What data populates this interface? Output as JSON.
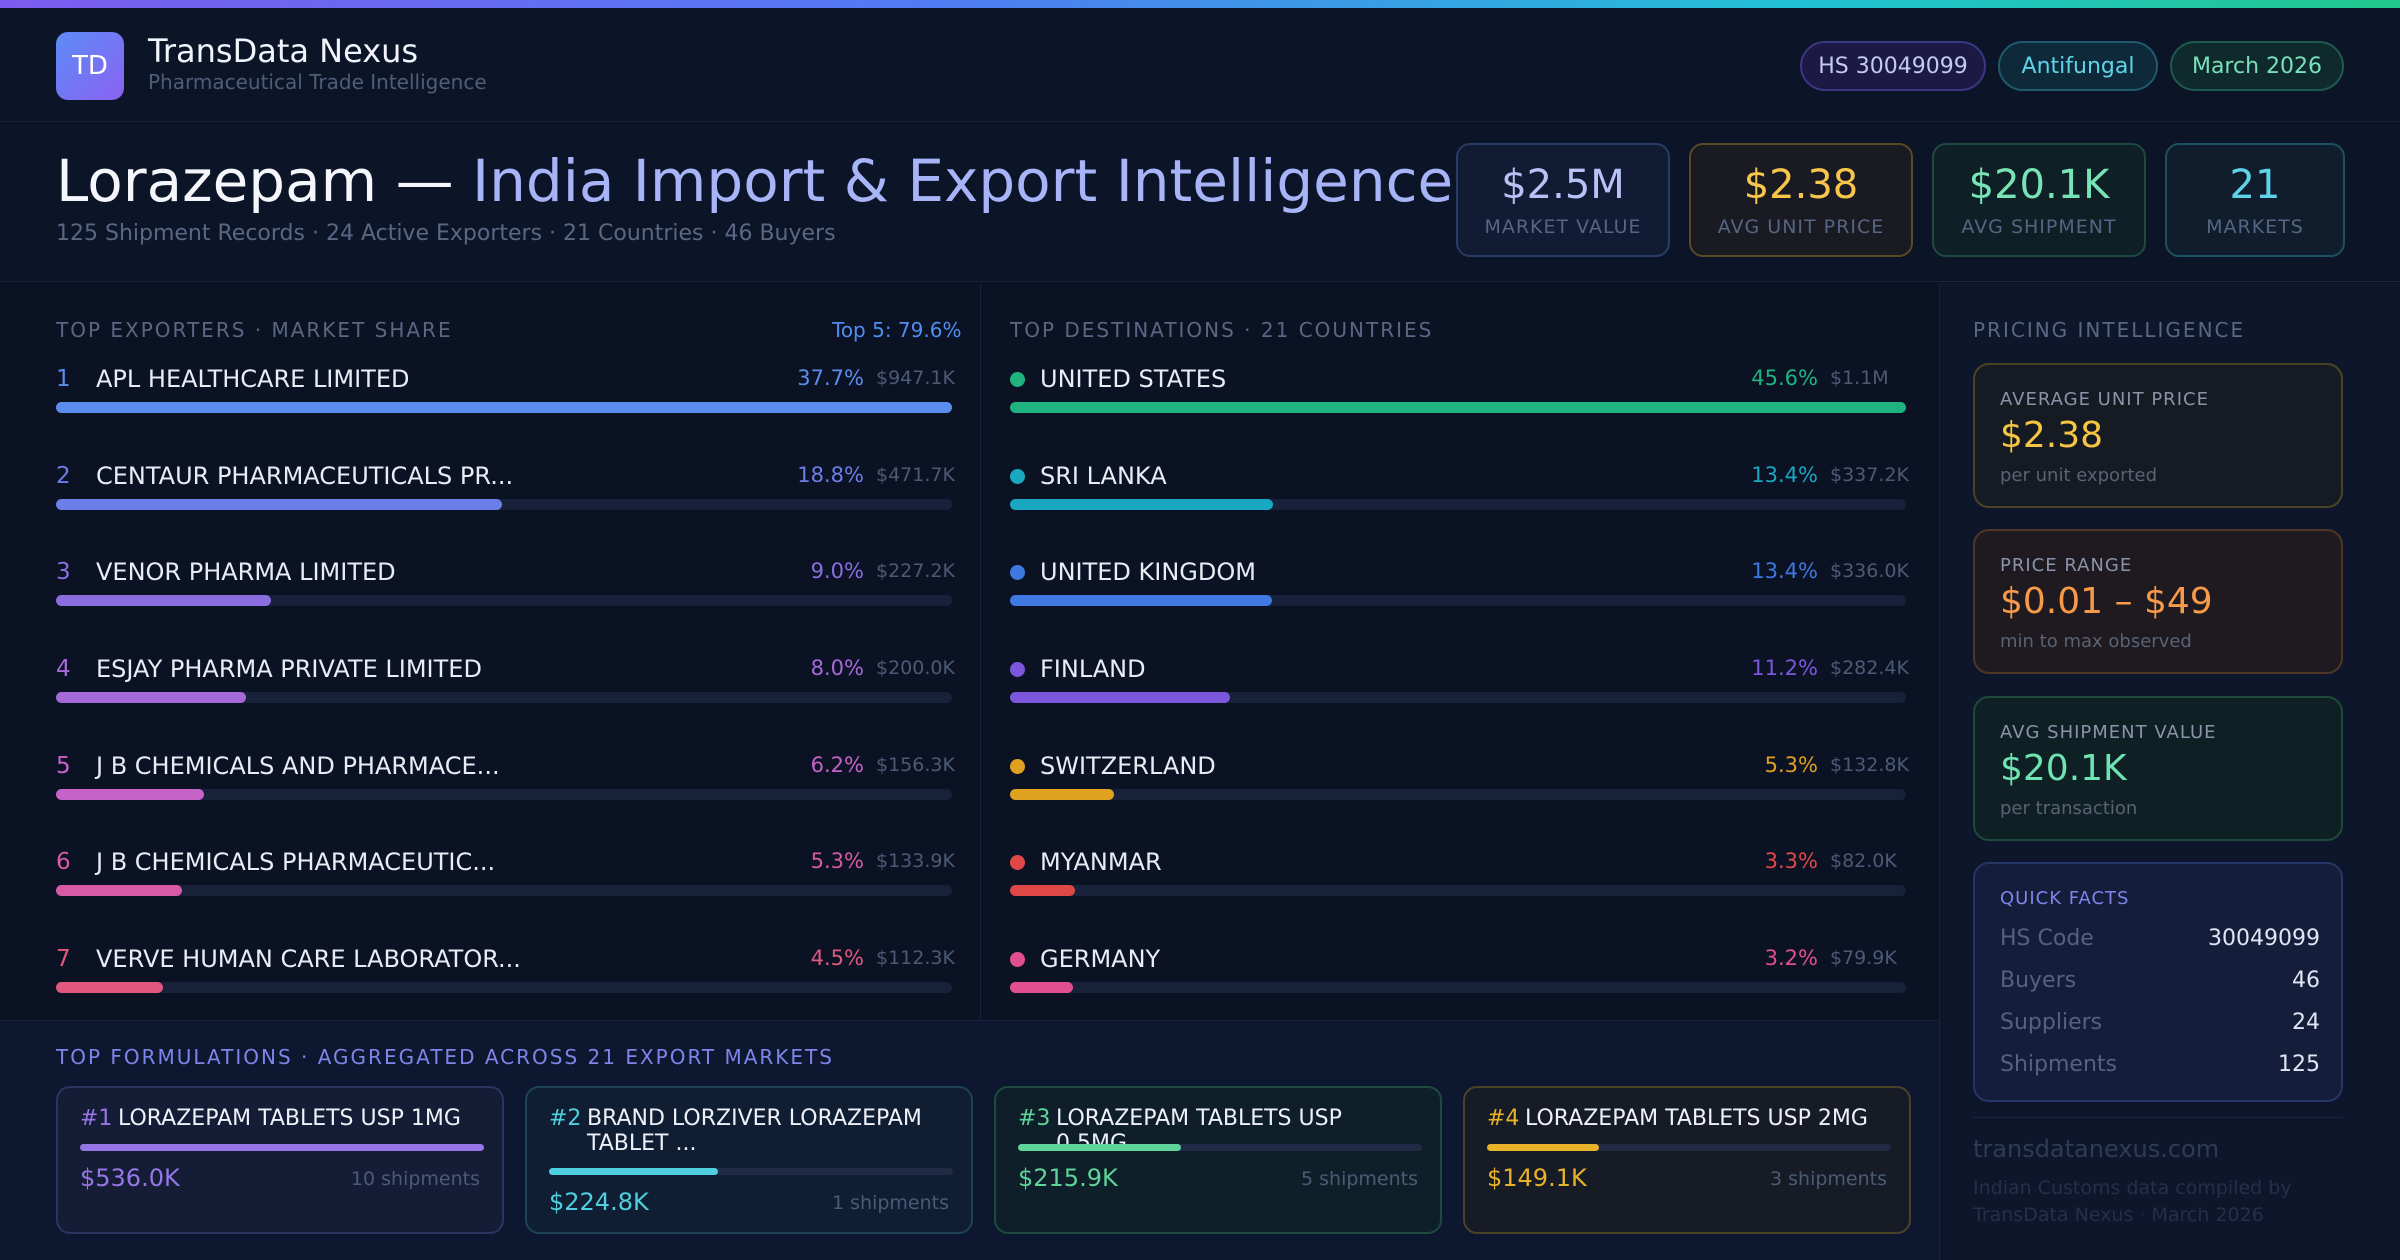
{
  "brand": {
    "logo_text": "TD",
    "name": "TransData Nexus",
    "tagline": "Pharmaceutical Trade Intelligence"
  },
  "pills": {
    "hs": "HS 30049099",
    "category": "Antifungal",
    "date": "March 2026"
  },
  "hero": {
    "title_main": "Lorazepam — ",
    "title_accent": "India Import & Export Intelligence",
    "subtitle": "125 Shipment Records · 24 Active Exporters · 21 Countries · 46 Buyers"
  },
  "kpis": [
    {
      "value": "$2.5M",
      "label": "MARKET VALUE"
    },
    {
      "value": "$2.38",
      "label": "AVG UNIT PRICE"
    },
    {
      "value": "$20.1K",
      "label": "AVG SHIPMENT"
    },
    {
      "value": "21",
      "label": "MARKETS"
    }
  ],
  "exporters": {
    "title": "TOP EXPORTERS · MARKET SHARE",
    "top5": "Top 5: 79.6%",
    "items": [
      {
        "rank": "1",
        "name": "APL HEALTHCARE LIMITED",
        "pct": "37.7%",
        "amount": "$947.1K",
        "share": 100,
        "color": "#5b8def"
      },
      {
        "rank": "2",
        "name": "CENTAUR PHARMACEUTICALS PR...",
        "pct": "18.8%",
        "amount": "$471.7K",
        "share": 49.8,
        "color": "#6c7ee8"
      },
      {
        "rank": "3",
        "name": "VENOR PHARMA LIMITED",
        "pct": "9.0%",
        "amount": "$227.2K",
        "share": 24,
        "color": "#8a6ee0"
      },
      {
        "rank": "4",
        "name": "ESJAY PHARMA PRIVATE LIMITED",
        "pct": "8.0%",
        "amount": "$200.0K",
        "share": 21.2,
        "color": "#a56ad8"
      },
      {
        "rank": "5",
        "name": "J B CHEMICALS AND PHARMACE...",
        "pct": "6.2%",
        "amount": "$156.3K",
        "share": 16.5,
        "color": "#c563c9"
      },
      {
        "rank": "6",
        "name": "J B CHEMICALS PHARMACEUTIC...",
        "pct": "5.3%",
        "amount": "$133.9K",
        "share": 14.1,
        "color": "#d85aa6"
      },
      {
        "rank": "7",
        "name": "VERVE HUMAN CARE LABORATOR...",
        "pct": "4.5%",
        "amount": "$112.3K",
        "share": 11.9,
        "color": "#e0587e"
      }
    ]
  },
  "destinations": {
    "title": "TOP DESTINATIONS · 21 COUNTRIES",
    "items": [
      {
        "name": "UNITED STATES",
        "pct": "45.6%",
        "amount": "$1.1M",
        "share": 100,
        "color": "#1fb47f"
      },
      {
        "name": "SRI LANKA",
        "pct": "13.4%",
        "amount": "$337.2K",
        "share": 29.4,
        "color": "#1aa7c2"
      },
      {
        "name": "UNITED KINGDOM",
        "pct": "13.4%",
        "amount": "$336.0K",
        "share": 29.2,
        "color": "#3f78e0"
      },
      {
        "name": "FINLAND",
        "pct": "11.2%",
        "amount": "$282.4K",
        "share": 24.6,
        "color": "#7c57dc"
      },
      {
        "name": "SWITZERLAND",
        "pct": "5.3%",
        "amount": "$132.8K",
        "share": 11.6,
        "color": "#e0a020"
      },
      {
        "name": "MYANMAR",
        "pct": "3.3%",
        "amount": "$82.0K",
        "share": 7.2,
        "color": "#e04848"
      },
      {
        "name": "GERMANY",
        "pct": "3.2%",
        "amount": "$79.9K",
        "share": 7,
        "color": "#e0508e"
      }
    ]
  },
  "formulations": {
    "title": "TOP FORMULATIONS · AGGREGATED ACROSS 21 EXPORT MARKETS",
    "items": [
      {
        "num": "#1",
        "name": "LORAZEPAM TABLETS USP 1MG",
        "value": "$536.0K",
        "shipments": "10 shipments",
        "share": 100,
        "color": "#9676e6"
      },
      {
        "num": "#2",
        "name": "BRAND LORZIVER LORAZEPAM TABLET ...",
        "value": "$224.8K",
        "shipments": "1 shipments",
        "share": 41.9,
        "color": "#4fd0e0"
      },
      {
        "num": "#3",
        "name": "LORAZEPAM TABLETS USP 0.5MG",
        "value": "$215.9K",
        "shipments": "5 shipments",
        "share": 40.3,
        "color": "#5fd49a"
      },
      {
        "num": "#4",
        "name": "LORAZEPAM TABLETS USP 2MG",
        "value": "$149.1K",
        "shipments": "3 shipments",
        "share": 27.8,
        "color": "#e8b22a"
      }
    ]
  },
  "pricing": {
    "title": "PRICING INTELLIGENCE",
    "avg_label": "AVERAGE UNIT PRICE",
    "avg_value": "$2.38",
    "avg_sub": "per unit exported",
    "range_label": "PRICE RANGE",
    "range_value": "$0.01 – $49",
    "range_sub": "min to max observed",
    "ship_label": "AVG SHIPMENT VALUE",
    "ship_value": "$20.1K",
    "ship_sub": "per transaction"
  },
  "quick_facts": {
    "title": "QUICK FACTS",
    "rows": [
      {
        "k": "HS Code",
        "v": "30049099"
      },
      {
        "k": "Buyers",
        "v": "46"
      },
      {
        "k": "Suppliers",
        "v": "24"
      },
      {
        "k": "Shipments",
        "v": "125"
      }
    ]
  },
  "footer": {
    "site": "transdatanexus.com",
    "note_line1": "Indian Customs data compiled by",
    "note_line2": "TransData Nexus · March 2026"
  }
}
